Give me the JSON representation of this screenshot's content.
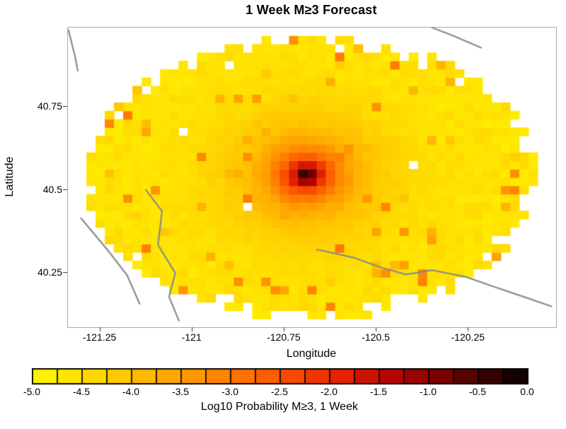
{
  "title": "1 Week M≥3 Forecast",
  "xlabel": "Longitude",
  "ylabel": "Latitude",
  "colorbar": {
    "label": "Log10 Probability M≥3, 1 Week",
    "tick_labels": [
      "-5.0",
      "-4.5",
      "-4.0",
      "-3.5",
      "-3.0",
      "-2.5",
      "-2.0",
      "-1.5",
      "-1.0",
      "-0.5",
      "0.0"
    ],
    "min": -5,
    "max": 0,
    "segments": 20
  },
  "chart_data": {
    "type": "heatmap",
    "title": "1 Week M≥3 Forecast",
    "xlabel": "Longitude",
    "ylabel": "Latitude",
    "value_label": "Log10 Probability M≥3, 1 Week",
    "value_range": [
      -5,
      0
    ],
    "xlim": [
      -121.3375,
      -120.0125
    ],
    "ylim": [
      40.0875,
      40.9875
    ],
    "xticks": [
      -121.25,
      -121,
      -120.75,
      -120.5,
      -120.25
    ],
    "xtick_labels": [
      "-121.25",
      "-121",
      "-120.75",
      "-120.5",
      "-120.25"
    ],
    "yticks": [
      40.25,
      40.5,
      40.75
    ],
    "ytick_labels": [
      "40.25",
      "40.5",
      "40.75"
    ],
    "grid": false,
    "cell_size_deg": 0.025,
    "hotspot": {
      "lon": -120.69,
      "lat": 40.545,
      "peak_log10p": 0.0,
      "r0_deg": 0.06,
      "falloff_exponent": 1.3,
      "lat_aspect": 1.15
    },
    "background_log10p": [
      -4.85,
      -4.4
    ],
    "speck_probability": 0.08,
    "footprint_ellipse": {
      "center_lon": -120.675,
      "center_lat": 40.5375,
      "semi_lon": 0.615,
      "semi_lat": 0.43
    },
    "colormap_stops": [
      {
        "t": 0.0,
        "rgb": [
          255,
          247,
          0
        ]
      },
      {
        "t": 0.08,
        "rgb": [
          255,
          228,
          0
        ]
      },
      {
        "t": 0.18,
        "rgb": [
          255,
          200,
          0
        ]
      },
      {
        "t": 0.3,
        "rgb": [
          255,
          160,
          0
        ]
      },
      {
        "t": 0.42,
        "rgb": [
          255,
          115,
          0
        ]
      },
      {
        "t": 0.52,
        "rgb": [
          248,
          75,
          0
        ]
      },
      {
        "t": 0.62,
        "rgb": [
          230,
          35,
          0
        ]
      },
      {
        "t": 0.72,
        "rgb": [
          185,
          5,
          0
        ]
      },
      {
        "t": 0.82,
        "rgb": [
          125,
          0,
          0
        ]
      },
      {
        "t": 0.92,
        "rgb": [
          55,
          0,
          0
        ]
      },
      {
        "t": 1.0,
        "rgb": [
          5,
          0,
          0
        ]
      }
    ],
    "fault_line_color": "#8a8a8a",
    "fault_lines": [
      [
        [
          -121.336,
          40.98
        ],
        [
          -121.318,
          40.9
        ],
        [
          -121.311,
          40.858
        ]
      ],
      [
        [
          -120.357,
          40.991
        ],
        [
          -120.29,
          40.962
        ],
        [
          -120.216,
          40.927
        ]
      ],
      [
        [
          -121.126,
          40.5
        ],
        [
          -121.082,
          40.436
        ],
        [
          -121.093,
          40.335
        ],
        [
          -121.046,
          40.25
        ],
        [
          -121.063,
          40.179
        ],
        [
          -121.036,
          40.107
        ]
      ],
      [
        [
          -121.302,
          40.415
        ],
        [
          -121.231,
          40.321
        ],
        [
          -121.177,
          40.244
        ],
        [
          -121.143,
          40.158
        ]
      ],
      [
        [
          -120.662,
          40.321
        ],
        [
          -120.563,
          40.297
        ],
        [
          -120.487,
          40.267
        ],
        [
          -120.42,
          40.246
        ],
        [
          -120.349,
          40.259
        ],
        [
          -120.258,
          40.239
        ],
        [
          -120.181,
          40.209
        ],
        [
          -120.095,
          40.177
        ],
        [
          -120.025,
          40.15
        ]
      ]
    ],
    "random_seed": 20240615
  }
}
